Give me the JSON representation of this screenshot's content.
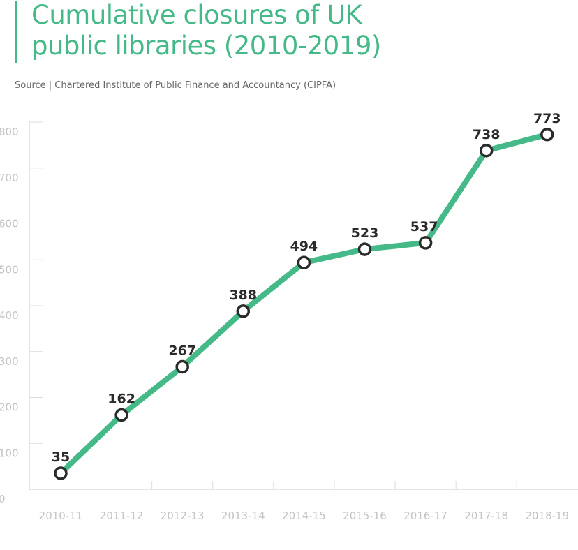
{
  "header": {
    "title_line1": "Cumulative closures of UK",
    "title_line2": "public libraries (2010-2019)",
    "source": "Source | Chartered Institute of Public Finance and Accountancy (CIPFA)"
  },
  "colors": {
    "line": "#45b987",
    "marker_stroke": "#2b2b2b",
    "title": "#45b987"
  },
  "chart_data": {
    "type": "line",
    "title": "Cumulative closures of UK public libraries (2010-2019)",
    "xlabel": "",
    "ylabel": "",
    "categories": [
      "2010-11",
      "2011-12",
      "2012-13",
      "2013-14",
      "2014-15",
      "2015-16",
      "2016-17",
      "2017-18",
      "2018-19"
    ],
    "values": [
      35,
      162,
      267,
      388,
      494,
      523,
      537,
      738,
      773
    ],
    "data_labels": [
      "35",
      "162",
      "267",
      "388",
      "494",
      "523",
      "537",
      "738",
      "773"
    ],
    "ylim": [
      0,
      800
    ],
    "yticks": [
      "0",
      "100",
      "200",
      "300",
      "400",
      "500",
      "600",
      "700",
      "800"
    ],
    "grid": false,
    "legend": "none"
  }
}
